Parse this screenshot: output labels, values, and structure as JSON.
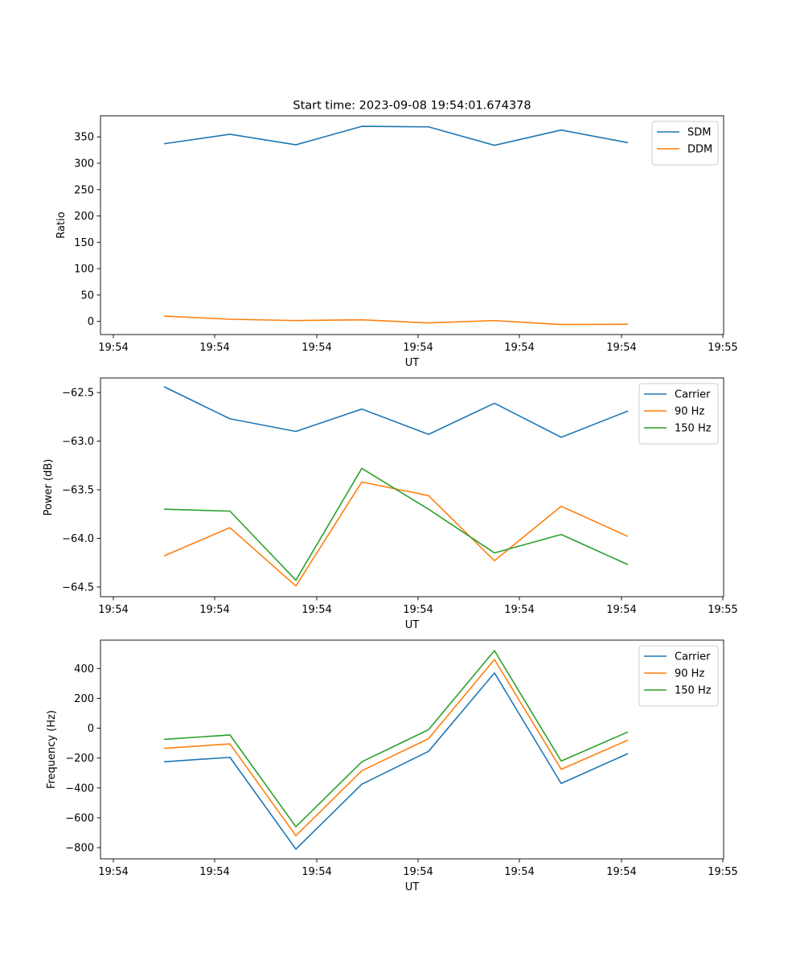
{
  "title": "Start time: 2023-09-08 19:54:01.674378",
  "chart_data": [
    {
      "type": "line",
      "xlabel": "UT",
      "ylabel": "Ratio",
      "xtick_labels": [
        "19:54",
        "19:54",
        "19:54",
        "19:54",
        "19:54",
        "19:54",
        "19:55"
      ],
      "ytick_labels": [
        "0",
        "50",
        "100",
        "150",
        "200",
        "250",
        "300",
        "350"
      ],
      "ytick_values": [
        0,
        50,
        100,
        150,
        200,
        250,
        300,
        350
      ],
      "ylim": [
        -25,
        390
      ],
      "x": [
        1,
        2,
        3,
        4,
        5,
        6,
        7,
        8
      ],
      "series": [
        {
          "name": "SDM",
          "color": "#1f77b4",
          "values": [
            337,
            355,
            335,
            370,
            369,
            334,
            363,
            339
          ]
        },
        {
          "name": "DDM",
          "color": "#ff7f0e",
          "values": [
            10,
            4,
            1.5,
            3,
            -3,
            1.5,
            -6,
            -5.5
          ]
        }
      ],
      "legend": "top-right"
    },
    {
      "type": "line",
      "xlabel": "UT",
      "ylabel": "Power (dB)",
      "xtick_labels": [
        "19:54",
        "19:54",
        "19:54",
        "19:54",
        "19:54",
        "19:54",
        "19:55"
      ],
      "ytick_labels": [
        "−64.5",
        "−64.0",
        "−63.5",
        "−63.0",
        "−62.5"
      ],
      "ytick_values": [
        -64.5,
        -64.0,
        -63.5,
        -63.0,
        -62.5
      ],
      "ylim": [
        -64.6,
        -62.35
      ],
      "x": [
        1,
        2,
        3,
        4,
        5,
        6,
        7,
        8
      ],
      "series": [
        {
          "name": "Carrier",
          "color": "#1f77b4",
          "values": [
            -62.44,
            -62.77,
            -62.9,
            -62.67,
            -62.93,
            -62.61,
            -62.96,
            -62.69
          ]
        },
        {
          "name": "90 Hz",
          "color": "#ff7f0e",
          "values": [
            -64.18,
            -63.89,
            -64.49,
            -63.42,
            -63.56,
            -64.23,
            -63.67,
            -63.98
          ]
        },
        {
          "name": "150 Hz",
          "color": "#2ca02c",
          "values": [
            -63.7,
            -63.72,
            -64.43,
            -63.28,
            -63.7,
            -64.15,
            -63.96,
            -64.27
          ]
        }
      ],
      "legend": "top-right"
    },
    {
      "type": "line",
      "xlabel": "UT",
      "ylabel": "Frequency (Hz)",
      "xtick_labels": [
        "19:54",
        "19:54",
        "19:54",
        "19:54",
        "19:54",
        "19:54",
        "19:55"
      ],
      "ytick_labels": [
        "−800",
        "−600",
        "−400",
        "−200",
        "0",
        "200",
        "400"
      ],
      "ytick_values": [
        -800,
        -600,
        -400,
        -200,
        0,
        200,
        400
      ],
      "ylim": [
        -875,
        590
      ],
      "x": [
        1,
        2,
        3,
        4,
        5,
        6,
        7,
        8
      ],
      "series": [
        {
          "name": "Carrier",
          "color": "#1f77b4",
          "values": [
            -225,
            -195,
            -810,
            -375,
            -155,
            370,
            -370,
            -170
          ]
        },
        {
          "name": "90 Hz",
          "color": "#ff7f0e",
          "values": [
            -135,
            -105,
            -720,
            -285,
            -70,
            460,
            -275,
            -80
          ]
        },
        {
          "name": "150 Hz",
          "color": "#2ca02c",
          "values": [
            -75,
            -45,
            -660,
            -225,
            -10,
            520,
            -220,
            -25
          ]
        }
      ],
      "legend": "top-right"
    }
  ]
}
